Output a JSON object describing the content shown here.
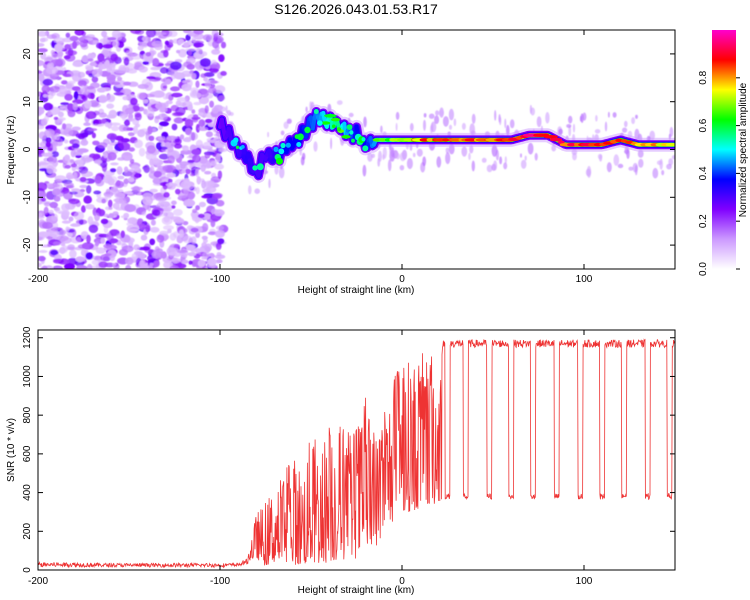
{
  "chart_data": [
    {
      "type": "heatmap",
      "title": "S126.2026.043.01.53.R17",
      "xlabel": "Height of straight line (km)",
      "ylabel": "Frequency (Hz)",
      "xlim": [
        -200,
        150
      ],
      "ylim": [
        -25,
        25
      ],
      "xticks": [
        -200,
        -100,
        0,
        100
      ],
      "xtick_labels": [
        "-200",
        "-100",
        "0",
        "100"
      ],
      "yticks": [
        -20,
        -10,
        0,
        10,
        20
      ],
      "ytick_labels": [
        "-20",
        "-10",
        "0",
        "10",
        "20"
      ],
      "noise_region_km": [
        -200,
        -98
      ],
      "ridge": {
        "x": [
          -100,
          -95,
          -90,
          -85,
          -80,
          -75,
          -70,
          -65,
          -60,
          -55,
          -50,
          -45,
          -40,
          -35,
          -30,
          -25,
          -20,
          -15,
          -10,
          -5,
          0,
          10,
          20,
          30,
          40,
          50,
          60,
          70,
          80,
          90,
          100,
          110,
          120,
          130,
          140,
          150
        ],
        "frequency": [
          5,
          3,
          0,
          -2,
          -5,
          -1,
          -2,
          0,
          1,
          3,
          6,
          7,
          6,
          5,
          4,
          3,
          1,
          2,
          2,
          2,
          2,
          2,
          2,
          2,
          2,
          2,
          2,
          3,
          3,
          1,
          1,
          1,
          2,
          1,
          1,
          1
        ],
        "amplitude": [
          0.35,
          0.4,
          0.4,
          0.45,
          0.4,
          0.4,
          0.45,
          0.5,
          0.5,
          0.5,
          0.55,
          0.6,
          0.7,
          0.75,
          0.6,
          0.5,
          0.5,
          0.6,
          0.7,
          0.7,
          0.8,
          0.85,
          0.85,
          0.9,
          0.9,
          0.9,
          0.9,
          0.95,
          0.9,
          0.9,
          0.9,
          0.9,
          0.85,
          0.8,
          0.8,
          0.75
        ]
      },
      "colorbar": {
        "label": "Normalized spectral amplitude",
        "range": [
          0,
          1
        ],
        "ticks": [
          0.0,
          0.2,
          0.4,
          0.6,
          0.8
        ],
        "tick_labels": [
          "0.0",
          "0.2",
          "0.4",
          "0.6",
          "0.8"
        ],
        "colormap": [
          "#ffffff",
          "#cc99ff",
          "#8000ff",
          "#0000ff",
          "#00ffff",
          "#00ff00",
          "#ffff00",
          "#ff0000",
          "#ff00cc"
        ]
      }
    },
    {
      "type": "line",
      "xlabel": "Height of straight line (km)",
      "ylabel": "SNR (10 * v/v)",
      "xlim": [
        -200,
        150
      ],
      "ylim": [
        0,
        1240
      ],
      "xticks": [
        -200,
        -100,
        0,
        100
      ],
      "xtick_labels": [
        "-200",
        "-100",
        "0",
        "100"
      ],
      "yticks": [
        0,
        200,
        400,
        600,
        800,
        1000,
        1200
      ],
      "ytick_labels": [
        "0",
        "200",
        "400",
        "600",
        "800",
        "1000",
        "1200"
      ],
      "series": [
        {
          "name": "SNR",
          "color": "#ee3333",
          "envelope_x": [
            -200,
            -180,
            -160,
            -140,
            -120,
            -100,
            -90,
            -85,
            -80,
            -75,
            -70,
            -65,
            -60,
            -55,
            -50,
            -45,
            -40,
            -35,
            -30,
            -25,
            -20,
            -15,
            -10,
            -5,
            0,
            5,
            10,
            15,
            18,
            20,
            22,
            25,
            30,
            40,
            60,
            80,
            100,
            120,
            150
          ],
          "envelope_low": [
            15,
            15,
            15,
            15,
            15,
            15,
            18,
            30,
            60,
            20,
            40,
            20,
            30,
            20,
            40,
            30,
            40,
            50,
            50,
            60,
            80,
            100,
            200,
            250,
            300,
            300,
            320,
            320,
            340,
            350,
            360,
            380,
            380,
            370,
            370,
            370,
            370,
            360,
            350
          ],
          "envelope_high": [
            40,
            40,
            35,
            35,
            35,
            35,
            35,
            60,
            300,
            350,
            450,
            520,
            600,
            550,
            700,
            650,
            780,
            800,
            720,
            760,
            900,
            700,
            850,
            1000,
            1120,
            1080,
            1120,
            1150,
            1100,
            1180,
            1230,
            1200,
            1200,
            1200,
            1200,
            1200,
            1200,
            1200,
            1180
          ],
          "plateau_value": 1170,
          "dropouts_km": [
            -2,
            8,
            15,
            25,
            35,
            48,
            60,
            72,
            85,
            98,
            110,
            122,
            135,
            147
          ],
          "dropout_level": 380
        }
      ]
    }
  ]
}
